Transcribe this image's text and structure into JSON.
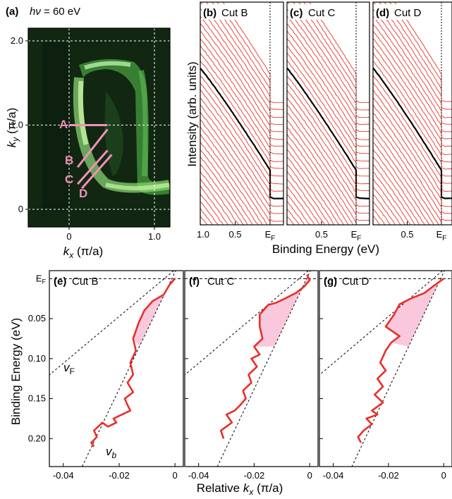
{
  "panel_a": {
    "label": "(a)",
    "photon_label_italic": "hν",
    "photon_label_value": " = 60 eV",
    "xlabel_var": "k",
    "xlabel_sub": "x",
    "xlabel_unit": " (π/a)",
    "ylabel_var": "k",
    "ylabel_sub": "y",
    "ylabel_unit": " (π/a)",
    "x_ticks": [
      "0",
      "1.0"
    ],
    "y_ticks": [
      "0",
      "1.0",
      "2.0"
    ],
    "xlim": [
      -0.2,
      1.15
    ],
    "ylim": [
      -0.1,
      2.15
    ],
    "cuts": [
      {
        "name": "A",
        "x": [
          0.0,
          0.45
        ],
        "y": [
          1.0,
          1.0
        ]
      },
      {
        "name": "B",
        "x": [
          0.1,
          0.45
        ],
        "y": [
          0.5,
          0.95
        ]
      },
      {
        "name": "C",
        "x": [
          0.1,
          0.45
        ],
        "y": [
          0.3,
          0.7
        ]
      },
      {
        "name": "D",
        "x": [
          0.15,
          0.5
        ],
        "y": [
          0.25,
          0.65
        ]
      }
    ],
    "cut_color": "#f090b8"
  },
  "edc_panels": [
    {
      "label": "(b)",
      "title": "Cut B",
      "ticks": [
        "1.0",
        "0.5",
        "E",
        "F"
      ]
    },
    {
      "label": "(c)",
      "title": "Cut C",
      "ticks": [
        "",
        "0.5",
        "E",
        "F"
      ]
    },
    {
      "label": "(d)",
      "title": "Cut D",
      "ticks": [
        "",
        "0.5",
        "E",
        "F"
      ]
    }
  ],
  "edc_ylabel": "Intensity (arb. units)",
  "edc_xlabel": "Binding Energy (eV)",
  "chart_data": [
    {
      "type": "line",
      "panel": "(e)",
      "title": "Cut B",
      "xlabel": "Relative kx (π/a)",
      "ylabel": "Binding Energy (eV)",
      "xlim": [
        -0.045,
        0.003
      ],
      "ylim": [
        0.235,
        -0.01
      ],
      "x_ticks": [
        "-0.04",
        "-0.02",
        "0"
      ],
      "y_ticks": [
        "0.05",
        "0.10",
        "0.15",
        "0.20"
      ],
      "fermi_label_main": "E",
      "fermi_label_sub": "F",
      "vF_main": "v",
      "vF_sub": "F",
      "vb_main": "v",
      "vb_sub": "b",
      "dispersion_x": [
        0.0,
        -0.002,
        -0.004,
        -0.008,
        -0.011,
        -0.013,
        -0.015,
        -0.014,
        -0.016,
        -0.015,
        -0.017,
        -0.015,
        -0.018,
        -0.017,
        -0.016,
        -0.019,
        -0.022,
        -0.021,
        -0.024,
        -0.026,
        -0.029,
        -0.028,
        -0.03,
        -0.029
      ],
      "dispersion_y": [
        0.0,
        0.008,
        0.02,
        0.028,
        0.04,
        0.055,
        0.075,
        0.09,
        0.105,
        0.12,
        0.13,
        0.142,
        0.15,
        0.158,
        0.165,
        0.17,
        0.175,
        0.18,
        0.185,
        0.18,
        0.19,
        0.198,
        0.205,
        0.21
      ],
      "vF_line": {
        "x": [
          0.003,
          -0.05
        ],
        "y": [
          -0.02,
          0.135
        ]
      },
      "vb_line": {
        "x": [
          0.003,
          -0.036
        ],
        "y": [
          -0.03,
          0.255
        ]
      }
    },
    {
      "type": "line",
      "panel": "(f)",
      "title": "Cut C",
      "xlabel": "Relative kx (π/a)",
      "ylabel": "Binding Energy (eV)",
      "xlim": [
        -0.045,
        0.003
      ],
      "ylim": [
        0.235,
        -0.01
      ],
      "x_ticks": [
        "-0.04",
        "-0.02",
        "0"
      ],
      "y_ticks": [],
      "dispersion_x": [
        -0.001,
        0.0,
        -0.002,
        -0.005,
        -0.009,
        -0.012,
        -0.015,
        -0.018,
        -0.018,
        -0.017,
        -0.02,
        -0.018,
        -0.021,
        -0.019,
        -0.022,
        -0.021,
        -0.024,
        -0.023,
        -0.025,
        -0.027,
        -0.03,
        -0.028,
        -0.032,
        -0.031
      ],
      "dispersion_y": [
        -0.005,
        0.002,
        0.01,
        0.018,
        0.025,
        0.03,
        0.033,
        0.045,
        0.06,
        0.075,
        0.085,
        0.095,
        0.1,
        0.11,
        0.12,
        0.13,
        0.14,
        0.15,
        0.158,
        0.165,
        0.17,
        0.18,
        0.19,
        0.2
      ],
      "vF_line": {
        "x": [
          0.003,
          -0.05
        ],
        "y": [
          -0.02,
          0.135
        ]
      },
      "vb_line": {
        "x": [
          0.003,
          -0.036
        ],
        "y": [
          -0.03,
          0.255
        ]
      }
    },
    {
      "type": "line",
      "panel": "(g)",
      "title": "Cut D",
      "xlabel": "Relative kx (π/a)",
      "ylabel": "Binding Energy (eV)",
      "xlim": [
        -0.045,
        0.003
      ],
      "ylim": [
        0.235,
        -0.01
      ],
      "x_ticks": [
        "-0.04",
        "-0.02",
        "0"
      ],
      "y_ticks": [],
      "dispersion_x": [
        0.0,
        -0.004,
        -0.007,
        -0.012,
        -0.016,
        -0.018,
        -0.021,
        -0.016,
        -0.019,
        -0.021,
        -0.023,
        -0.021,
        -0.024,
        -0.022,
        -0.025,
        -0.022,
        -0.026,
        -0.024,
        -0.028,
        -0.026,
        -0.029,
        -0.031,
        -0.03
      ],
      "dispersion_y": [
        0.0,
        0.01,
        0.018,
        0.025,
        0.032,
        0.045,
        0.06,
        0.072,
        0.08,
        0.09,
        0.105,
        0.115,
        0.125,
        0.135,
        0.145,
        0.155,
        0.165,
        0.17,
        0.175,
        0.182,
        0.19,
        0.198,
        0.205
      ],
      "vF_line": {
        "x": [
          0.003,
          -0.05
        ],
        "y": [
          -0.02,
          0.135
        ]
      },
      "vb_line": {
        "x": [
          0.003,
          -0.036
        ],
        "y": [
          -0.03,
          0.255
        ]
      }
    }
  ],
  "bottom_xlabel_main": "Relative ",
  "bottom_xlabel_var": "k",
  "bottom_xlabel_sub": "x",
  "bottom_xlabel_unit": " (π/a)",
  "bottom_ylabel": "Binding Energy (eV)",
  "colors": {
    "curve": "#e8302a",
    "fill": "#f9c8dc",
    "edc": "#e4352c",
    "highlight": "#000000",
    "cut": "#f090b8"
  }
}
